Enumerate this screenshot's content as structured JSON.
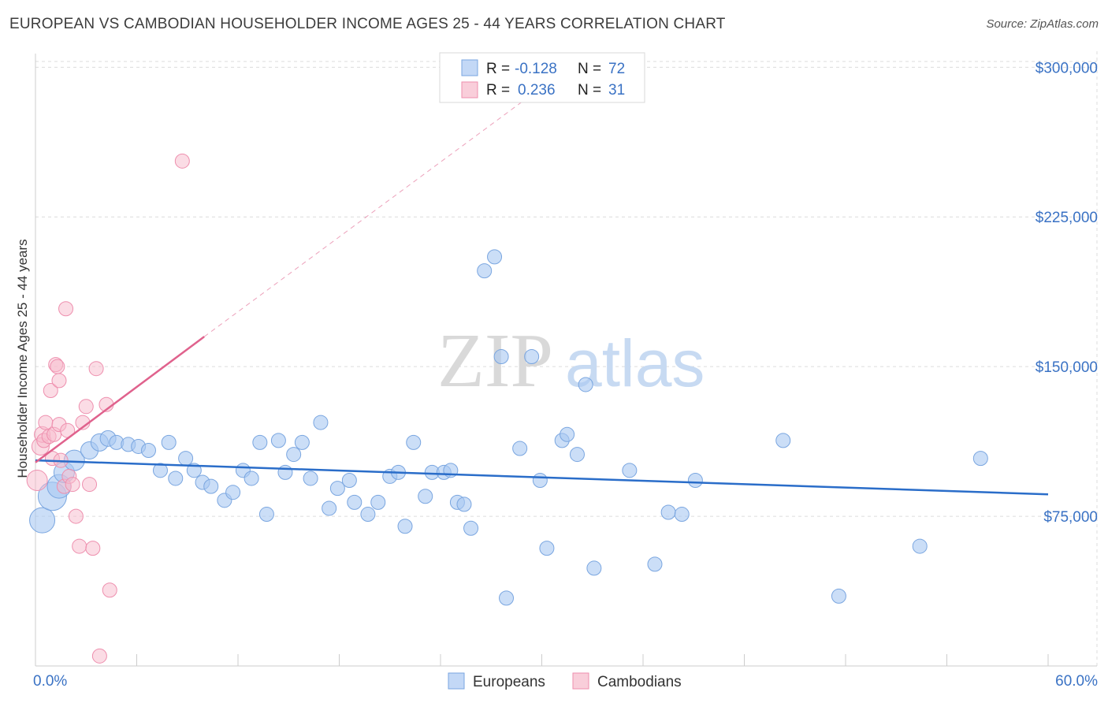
{
  "title": "EUROPEAN VS CAMBODIAN HOUSEHOLDER INCOME AGES 25 - 44 YEARS CORRELATION CHART",
  "source": "Source: ZipAtlas.com",
  "watermark": {
    "zip": "ZIP",
    "atlas": "atlas"
  },
  "colors": {
    "europeans": "#a9c8f2",
    "europeans_stroke": "#7aa6e0",
    "europeans_line": "#2a6dc9",
    "cambodians": "#f7b9cb",
    "cambodians_stroke": "#ee8fae",
    "cambodians_line": "#e0628d",
    "grid": "#dcdcdc",
    "axis_text": "#3a72c4"
  },
  "legend": {
    "rows": [
      {
        "r_label": "R =",
        "r_value": "-0.128",
        "n_label": "N =",
        "n_value": "72"
      },
      {
        "r_label": "R =",
        "r_value": "0.236",
        "n_label": "N =",
        "n_value": "31"
      }
    ]
  },
  "chart_data": {
    "type": "scatter",
    "title": "EUROPEAN VS CAMBODIAN HOUSEHOLDER INCOME AGES 25 - 44 YEARS CORRELATION CHART",
    "xlabel": "",
    "ylabel": "Householder Income Ages 25 - 44 years",
    "xlim": [
      0,
      60
    ],
    "ylim": [
      0,
      310000
    ],
    "x_tick_labels": [
      "0.0%",
      "60.0%"
    ],
    "y_ticks": [
      75000,
      150000,
      225000,
      300000
    ],
    "y_tick_labels": [
      "$75,000",
      "$150,000",
      "$225,000",
      "$300,000"
    ],
    "legend_position": "bottom-center",
    "series": [
      {
        "name": "Europeans",
        "R": -0.128,
        "N": 72,
        "trend": {
          "x": [
            0,
            60
          ],
          "y": [
            103000,
            86000
          ]
        },
        "points": [
          [
            0.4,
            73000,
            16
          ],
          [
            1.0,
            85000,
            18
          ],
          [
            1.4,
            90000,
            15
          ],
          [
            1.7,
            97000,
            13
          ],
          [
            2.3,
            103000,
            13
          ],
          [
            3.2,
            108000,
            11
          ],
          [
            3.8,
            112000,
            11
          ],
          [
            4.3,
            114000,
            10
          ],
          [
            4.8,
            112000,
            9
          ],
          [
            5.5,
            111000,
            9
          ],
          [
            6.1,
            110000,
            9
          ],
          [
            6.7,
            108000,
            9
          ],
          [
            7.4,
            98000,
            9
          ],
          [
            7.9,
            112000,
            9
          ],
          [
            8.3,
            94000,
            9
          ],
          [
            8.9,
            104000,
            9
          ],
          [
            9.4,
            98000,
            9
          ],
          [
            9.9,
            92000,
            9
          ],
          [
            10.4,
            90000,
            9
          ],
          [
            11.2,
            83000,
            9
          ],
          [
            11.7,
            87000,
            9
          ],
          [
            12.3,
            98000,
            9
          ],
          [
            12.8,
            94000,
            9
          ],
          [
            13.3,
            112000,
            9
          ],
          [
            13.7,
            76000,
            9
          ],
          [
            14.4,
            113000,
            9
          ],
          [
            14.8,
            97000,
            9
          ],
          [
            15.3,
            106000,
            9
          ],
          [
            15.8,
            112000,
            9
          ],
          [
            16.3,
            94000,
            9
          ],
          [
            16.9,
            122000,
            9
          ],
          [
            17.4,
            79000,
            9
          ],
          [
            17.9,
            89000,
            9
          ],
          [
            18.6,
            93000,
            9
          ],
          [
            18.9,
            82000,
            9
          ],
          [
            19.7,
            76000,
            9
          ],
          [
            20.3,
            82000,
            9
          ],
          [
            21.0,
            95000,
            9
          ],
          [
            21.5,
            97000,
            9
          ],
          [
            21.9,
            70000,
            9
          ],
          [
            22.4,
            112000,
            9
          ],
          [
            23.1,
            85000,
            9
          ],
          [
            23.5,
            97000,
            9
          ],
          [
            24.2,
            97000,
            9
          ],
          [
            24.6,
            98000,
            9
          ],
          [
            25.0,
            82000,
            9
          ],
          [
            25.4,
            81000,
            9
          ],
          [
            25.8,
            69000,
            9
          ],
          [
            26.6,
            198000,
            9
          ],
          [
            27.2,
            205000,
            9
          ],
          [
            27.6,
            155000,
            9
          ],
          [
            27.9,
            34000,
            9
          ],
          [
            28.7,
            109000,
            9
          ],
          [
            29.4,
            155000,
            9
          ],
          [
            29.9,
            93000,
            9
          ],
          [
            30.3,
            59000,
            9
          ],
          [
            31.2,
            113000,
            9
          ],
          [
            31.5,
            116000,
            9
          ],
          [
            32.1,
            106000,
            9
          ],
          [
            32.6,
            141000,
            9
          ],
          [
            33.1,
            49000,
            9
          ],
          [
            35.2,
            98000,
            9
          ],
          [
            36.7,
            51000,
            9
          ],
          [
            37.5,
            77000,
            9
          ],
          [
            38.3,
            76000,
            9
          ],
          [
            39.1,
            93000,
            9
          ],
          [
            44.3,
            113000,
            9
          ],
          [
            47.6,
            35000,
            9
          ],
          [
            52.4,
            60000,
            9
          ],
          [
            56.0,
            104000,
            9
          ]
        ]
      },
      {
        "name": "Cambodians",
        "R": 0.236,
        "N": 31,
        "trend": {
          "x": [
            0,
            10
          ],
          "y": [
            102000,
            165000
          ]
        },
        "trend_dashed": {
          "x": [
            10,
            30
          ],
          "y": [
            165000,
            290000
          ]
        },
        "points": [
          [
            0.1,
            93000,
            13
          ],
          [
            0.3,
            110000,
            11
          ],
          [
            0.4,
            116000,
            10
          ],
          [
            0.5,
            113000,
            9
          ],
          [
            0.6,
            122000,
            9
          ],
          [
            0.8,
            115000,
            9
          ],
          [
            0.9,
            138000,
            9
          ],
          [
            1.0,
            104000,
            9
          ],
          [
            1.1,
            116000,
            9
          ],
          [
            1.2,
            151000,
            9
          ],
          [
            1.3,
            150000,
            9
          ],
          [
            1.4,
            121000,
            9
          ],
          [
            1.4,
            143000,
            9
          ],
          [
            1.5,
            103000,
            9
          ],
          [
            1.7,
            90000,
            9
          ],
          [
            1.8,
            179000,
            9
          ],
          [
            1.9,
            118000,
            9
          ],
          [
            2.0,
            95000,
            9
          ],
          [
            2.2,
            91000,
            9
          ],
          [
            2.4,
            75000,
            9
          ],
          [
            2.6,
            60000,
            9
          ],
          [
            2.8,
            122000,
            9
          ],
          [
            3.0,
            130000,
            9
          ],
          [
            3.2,
            91000,
            9
          ],
          [
            3.4,
            59000,
            9
          ],
          [
            3.6,
            149000,
            9
          ],
          [
            3.8,
            5000,
            9
          ],
          [
            4.2,
            131000,
            9
          ],
          [
            4.4,
            38000,
            9
          ],
          [
            8.7,
            253000,
            9
          ]
        ]
      }
    ]
  }
}
